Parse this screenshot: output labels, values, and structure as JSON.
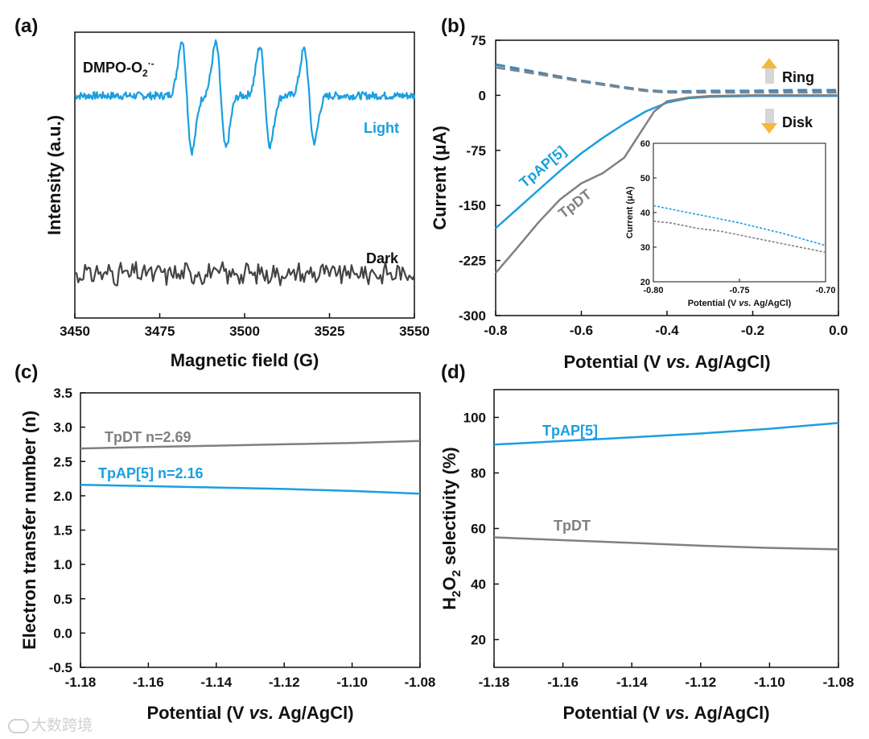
{
  "watermark": "大数跨境",
  "colors": {
    "blue": "#1a9fe0",
    "gray": "#808080",
    "darkgray": "#444444",
    "dashblue": "#3d86b8",
    "dashgray": "#7a8590",
    "arrowOrange": "#f5b73c"
  },
  "chart_data": [
    {
      "panel": "(a)",
      "type": "line",
      "title": "",
      "xlabel": "Magnetic field (G)",
      "ylabel": "Intensity (a.u.)",
      "xlim": [
        3450,
        3550
      ],
      "xticks": [
        "3450",
        "3475",
        "3500",
        "3525",
        "3550"
      ],
      "annotation_main": "DMPO-O",
      "annotation_sub": "2",
      "annotation_sup": "·-",
      "series": [
        {
          "name": "Light",
          "color": "#1a9fe0",
          "baseline": 1.0,
          "peaks": [
            [
              3483,
              0.9,
              -1.05
            ],
            [
              3493,
              0.85,
              -0.95
            ],
            [
              3506,
              0.8,
              -0.98
            ],
            [
              3519,
              0.75,
              -1.0
            ]
          ]
        },
        {
          "name": "Dark",
          "color": "#444444",
          "baseline": -1.8,
          "noise": 0.12
        }
      ]
    },
    {
      "panel": "(b)",
      "type": "line",
      "xlabel": "Potential (V vs. Ag/AgCl)",
      "xlabel_parts": [
        "Potential (V ",
        "vs.",
        " Ag/AgCl)"
      ],
      "ylabel": "Current (μA)",
      "xlim": [
        -0.8,
        0.0
      ],
      "ylim": [
        -300,
        75
      ],
      "xticks": [
        "-0.8",
        "-0.6",
        "-0.4",
        "-0.2",
        "0.0"
      ],
      "yticks": [
        "75",
        "0",
        "-75",
        "-150",
        "-225",
        "-300"
      ],
      "ring_label": "Ring",
      "disk_label": "Disk",
      "series": [
        {
          "name": "TpAP[5]",
          "kind": "disk",
          "color": "#1a9fe0",
          "x": [
            -0.8,
            -0.75,
            -0.7,
            -0.65,
            -0.6,
            -0.55,
            -0.5,
            -0.45,
            -0.4,
            -0.35,
            -0.3,
            -0.2,
            -0.1,
            0.0
          ],
          "y": [
            -181,
            -155,
            -129,
            -103,
            -79,
            -58,
            -39,
            -22,
            -10,
            -4,
            -2,
            -1,
            -1,
            -1
          ]
        },
        {
          "name": "TpDT",
          "kind": "disk",
          "color": "#808080",
          "x": [
            -0.8,
            -0.75,
            -0.7,
            -0.65,
            -0.6,
            -0.55,
            -0.5,
            -0.47,
            -0.43,
            -0.4,
            -0.35,
            -0.3,
            -0.2,
            -0.1,
            0.0
          ],
          "y": [
            -242,
            -208,
            -173,
            -142,
            -120,
            -106,
            -85,
            -58,
            -22,
            -8,
            -3,
            -1,
            0,
            0,
            0
          ]
        },
        {
          "name": "TpAP[5] ring",
          "kind": "ring",
          "color": "#3d86b8",
          "x": [
            -0.8,
            -0.7,
            -0.6,
            -0.5,
            -0.45,
            -0.4,
            -0.3,
            -0.2,
            -0.1,
            0.0
          ],
          "y": [
            42,
            31,
            20,
            11,
            7,
            5,
            6,
            6,
            7,
            7
          ]
        },
        {
          "name": "TpDT ring",
          "kind": "ring",
          "color": "#7a8590",
          "x": [
            -0.8,
            -0.7,
            -0.6,
            -0.5,
            -0.45,
            -0.4,
            -0.3,
            -0.2,
            -0.1,
            0.0
          ],
          "y": [
            38,
            29,
            19,
            10,
            6,
            4,
            4,
            4,
            4,
            4
          ]
        }
      ],
      "inset": {
        "xlabel": "Potential (V vs. Ag/AgCl)",
        "xlabel_parts": [
          "Potential (V ",
          "vs.",
          " Ag/AgCl)"
        ],
        "ylabel": "Current (μA)",
        "xlim": [
          -0.8,
          -0.7
        ],
        "ylim": [
          20,
          60
        ],
        "xticks": [
          "-0.80",
          "-0.75",
          "-0.70"
        ],
        "yticks": [
          "60",
          "50",
          "40",
          "30",
          "20"
        ],
        "series": [
          {
            "name": "TpAP[5] ring",
            "color": "#1a9fe0",
            "x": [
              -0.8,
              -0.775,
              -0.75,
              -0.725,
              -0.7
            ],
            "y": [
              42,
              39.5,
              37,
              34,
              30.5
            ]
          },
          {
            "name": "TpDT ring",
            "color": "#808080",
            "x": [
              -0.8,
              -0.79,
              -0.775,
              -0.76,
              -0.74,
              -0.72,
              -0.7
            ],
            "y": [
              37.5,
              37,
              35.5,
              34.5,
              32.5,
              30.5,
              28.5
            ]
          }
        ]
      }
    },
    {
      "panel": "(c)",
      "type": "line",
      "xlabel": "Potential (V vs. Ag/AgCl)",
      "xlabel_parts": [
        "Potential (V ",
        "vs.",
        " Ag/AgCl)"
      ],
      "ylabel": "Electron transfer number (n)",
      "xlim": [
        -1.18,
        -1.08
      ],
      "ylim": [
        -0.5,
        3.5
      ],
      "xticks": [
        "-1.18",
        "-1.16",
        "-1.14",
        "-1.12",
        "-1.10",
        "-1.08"
      ],
      "yticks": [
        "3.5",
        "3.0",
        "2.5",
        "2.0",
        "1.5",
        "1.0",
        "0.5",
        "0.0",
        "-0.5"
      ],
      "series": [
        {
          "name": "TpDT",
          "label": "TpDT n=2.69",
          "color": "#808080",
          "x": [
            -1.18,
            -1.16,
            -1.14,
            -1.12,
            -1.1,
            -1.08
          ],
          "y": [
            2.69,
            2.71,
            2.73,
            2.75,
            2.77,
            2.8
          ]
        },
        {
          "name": "TpAP[5]",
          "label": "TpAP[5] n=2.16",
          "color": "#1a9fe0",
          "x": [
            -1.18,
            -1.16,
            -1.14,
            -1.12,
            -1.1,
            -1.08
          ],
          "y": [
            2.16,
            2.14,
            2.12,
            2.1,
            2.07,
            2.03
          ]
        }
      ]
    },
    {
      "panel": "(d)",
      "type": "line",
      "xlabel": "Potential (V vs. Ag/AgCl)",
      "xlabel_parts": [
        "Potential (V ",
        "vs.",
        " Ag/AgCl)"
      ],
      "ylabel": "H2O2 selectivity (%)",
      "ylabel_parts": [
        "H",
        "2",
        "O",
        "2",
        " selectivity (%)"
      ],
      "xlim": [
        -1.18,
        -1.08
      ],
      "ylim": [
        10,
        110
      ],
      "xticks": [
        "-1.18",
        "-1.16",
        "-1.14",
        "-1.12",
        "-1.10",
        "-1.08"
      ],
      "yticks": [
        "100",
        "80",
        "60",
        "40",
        "20"
      ],
      "series": [
        {
          "name": "TpAP[5]",
          "label": "TpAP[5]",
          "color": "#1a9fe0",
          "x": [
            -1.18,
            -1.16,
            -1.14,
            -1.12,
            -1.1,
            -1.08
          ],
          "y": [
            90.2,
            91.5,
            92.8,
            94.2,
            95.9,
            98.0
          ]
        },
        {
          "name": "TpDT",
          "label": "TpDT",
          "color": "#808080",
          "x": [
            -1.18,
            -1.16,
            -1.14,
            -1.12,
            -1.1,
            -1.08
          ],
          "y": [
            56.8,
            55.8,
            54.8,
            53.8,
            53.0,
            52.5
          ]
        }
      ]
    }
  ]
}
